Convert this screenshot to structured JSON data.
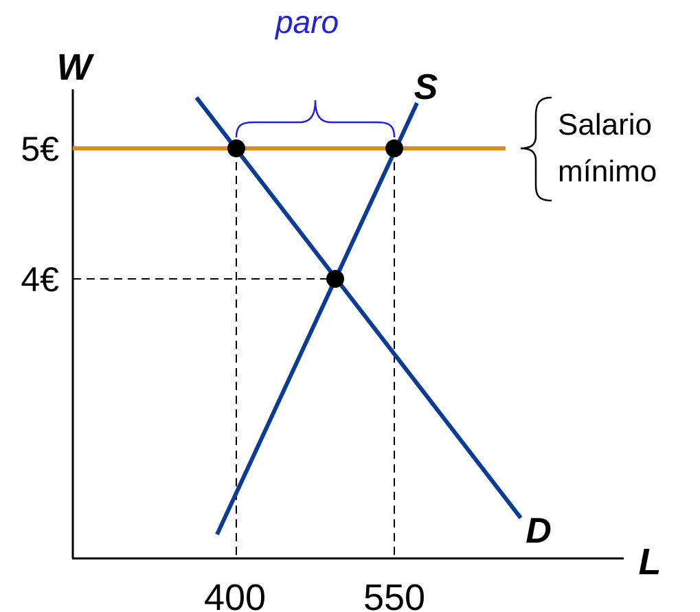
{
  "chart_data": {
    "type": "line",
    "ylabel": "W",
    "xlabel": "L",
    "x_ticks": [
      "400",
      "550"
    ],
    "y_ticks": [
      "5€",
      "4€"
    ],
    "minimum_wage": {
      "value": 5,
      "label_line1": "Salario",
      "label_line2": "mínimo",
      "color": "#e08a1e"
    },
    "series": [
      {
        "name": "S",
        "color": "#0a3c96"
      },
      {
        "name": "D",
        "color": "#0a3c96"
      }
    ],
    "points": [
      {
        "x": 400,
        "y": 5
      },
      {
        "x": 550,
        "y": 5
      },
      {
        "x": 494,
        "y": 4
      }
    ],
    "gap_label": "paro",
    "gap_color": "#1f1fe6"
  }
}
